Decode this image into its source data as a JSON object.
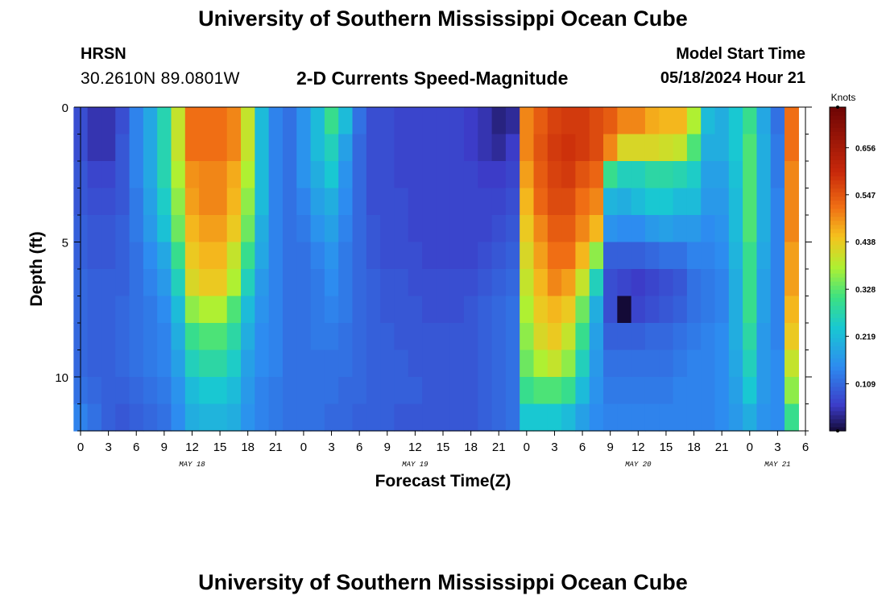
{
  "header": {
    "title": "University of Southern Mississippi Ocean Cube",
    "station": "HRSN",
    "coords": "30.2610N  89.0801W",
    "subtitle": "2-D Currents Speed-Magnitude",
    "model_start_label": "Model Start Time",
    "model_start_value": "05/18/2024 Hour 21"
  },
  "footer": {
    "title": "University of Southern Mississippi Ocean Cube"
  },
  "chart_data": {
    "type": "heatmap",
    "xlabel": "Forecast Time(Z)",
    "ylabel": "Depth (ft)",
    "colorbar_label": "Knots",
    "x_hours": [
      0,
      3,
      6,
      9,
      12,
      15,
      18,
      21,
      24,
      27,
      30,
      33,
      36,
      39,
      42,
      45,
      48,
      51,
      54,
      57,
      60,
      63,
      66,
      69,
      72,
      75,
      78
    ],
    "x_tick_labels": [
      "0",
      "3",
      "6",
      "9",
      "12",
      "15",
      "18",
      "21",
      "0",
      "3",
      "6",
      "9",
      "12",
      "15",
      "18",
      "21",
      "0",
      "3",
      "6",
      "9",
      "12",
      "15",
      "18",
      "21",
      "0",
      "3",
      "6"
    ],
    "date_labels": [
      {
        "label": "MAY 18",
        "hour": 12
      },
      {
        "label": "MAY 19",
        "hour": 36
      },
      {
        "label": "MAY 20",
        "hour": 60
      },
      {
        "label": "MAY 21",
        "hour": 75
      }
    ],
    "xlim": [
      0,
      78
    ],
    "ylim": [
      0,
      12
    ],
    "y_ticks": [
      0,
      5,
      10
    ],
    "y_tick_labels": [
      "0",
      "5",
      "10"
    ],
    "depths_ft": [
      0.5,
      1.5,
      2.5,
      3.5,
      4.5,
      5.5,
      6.5,
      7.5,
      8.5,
      9.5,
      10.5,
      11.5
    ],
    "times_h": [
      0,
      1.5,
      3,
      4.5,
      6,
      7.5,
      9,
      10.5,
      12,
      13.5,
      15,
      16.5,
      18,
      19.5,
      21,
      22.5,
      24,
      25.5,
      27,
      28.5,
      30,
      31.5,
      33,
      34.5,
      36,
      37.5,
      39,
      40.5,
      42,
      43.5,
      45,
      46.5,
      48,
      49.5,
      51,
      52.5,
      54,
      55.5,
      57,
      58.5,
      60,
      61.5,
      63,
      64.5,
      66,
      67.5,
      69,
      70.5,
      72,
      73.5,
      75,
      76.5
    ],
    "colorbar_ticks": [
      0.109,
      0.219,
      0.328,
      0.438,
      0.547,
      0.656
    ],
    "colorbar_range": [
      0.0,
      0.75
    ],
    "values": [
      [
        0.08,
        0.05,
        0.05,
        0.08,
        0.14,
        0.19,
        0.27,
        0.4,
        0.52,
        0.52,
        0.52,
        0.5,
        0.4,
        0.22,
        0.14,
        0.12,
        0.16,
        0.22,
        0.3,
        0.22,
        0.12,
        0.08,
        0.08,
        0.07,
        0.07,
        0.07,
        0.07,
        0.07,
        0.06,
        0.05,
        0.03,
        0.04,
        0.5,
        0.54,
        0.57,
        0.58,
        0.58,
        0.56,
        0.54,
        0.5,
        0.5,
        0.47,
        0.46,
        0.46,
        0.38,
        0.22,
        0.2,
        0.24,
        0.3,
        0.19,
        0.12,
        0.52
      ],
      [
        0.08,
        0.05,
        0.05,
        0.09,
        0.14,
        0.19,
        0.27,
        0.4,
        0.52,
        0.52,
        0.52,
        0.5,
        0.4,
        0.22,
        0.14,
        0.12,
        0.16,
        0.22,
        0.26,
        0.18,
        0.11,
        0.08,
        0.08,
        0.07,
        0.07,
        0.07,
        0.07,
        0.07,
        0.06,
        0.05,
        0.04,
        0.06,
        0.5,
        0.55,
        0.58,
        0.59,
        0.58,
        0.56,
        0.5,
        0.42,
        0.42,
        0.42,
        0.41,
        0.4,
        0.32,
        0.2,
        0.2,
        0.24,
        0.32,
        0.2,
        0.13,
        0.52
      ],
      [
        0.09,
        0.07,
        0.07,
        0.09,
        0.14,
        0.19,
        0.27,
        0.38,
        0.49,
        0.5,
        0.5,
        0.47,
        0.38,
        0.22,
        0.14,
        0.12,
        0.16,
        0.2,
        0.24,
        0.16,
        0.11,
        0.08,
        0.08,
        0.07,
        0.07,
        0.07,
        0.07,
        0.07,
        0.07,
        0.06,
        0.06,
        0.07,
        0.48,
        0.54,
        0.57,
        0.58,
        0.55,
        0.53,
        0.3,
        0.26,
        0.26,
        0.28,
        0.28,
        0.27,
        0.25,
        0.18,
        0.18,
        0.23,
        0.32,
        0.2,
        0.13,
        0.5
      ],
      [
        0.09,
        0.08,
        0.08,
        0.09,
        0.13,
        0.18,
        0.25,
        0.36,
        0.48,
        0.5,
        0.5,
        0.46,
        0.36,
        0.22,
        0.14,
        0.12,
        0.14,
        0.18,
        0.2,
        0.15,
        0.11,
        0.08,
        0.08,
        0.08,
        0.07,
        0.07,
        0.07,
        0.07,
        0.07,
        0.07,
        0.07,
        0.08,
        0.46,
        0.53,
        0.56,
        0.56,
        0.52,
        0.5,
        0.21,
        0.2,
        0.22,
        0.24,
        0.24,
        0.22,
        0.22,
        0.17,
        0.17,
        0.22,
        0.32,
        0.2,
        0.14,
        0.5
      ],
      [
        0.1,
        0.09,
        0.09,
        0.1,
        0.13,
        0.17,
        0.23,
        0.34,
        0.46,
        0.48,
        0.48,
        0.44,
        0.34,
        0.2,
        0.14,
        0.12,
        0.13,
        0.16,
        0.18,
        0.14,
        0.11,
        0.09,
        0.08,
        0.08,
        0.07,
        0.07,
        0.07,
        0.07,
        0.07,
        0.07,
        0.08,
        0.09,
        0.44,
        0.5,
        0.54,
        0.54,
        0.5,
        0.46,
        0.16,
        0.15,
        0.15,
        0.17,
        0.18,
        0.17,
        0.17,
        0.15,
        0.16,
        0.22,
        0.32,
        0.2,
        0.14,
        0.5
      ],
      [
        0.1,
        0.09,
        0.09,
        0.1,
        0.12,
        0.15,
        0.19,
        0.3,
        0.44,
        0.46,
        0.46,
        0.4,
        0.3,
        0.19,
        0.14,
        0.12,
        0.12,
        0.14,
        0.16,
        0.13,
        0.11,
        0.09,
        0.08,
        0.08,
        0.08,
        0.07,
        0.07,
        0.07,
        0.07,
        0.08,
        0.09,
        0.1,
        0.42,
        0.48,
        0.52,
        0.52,
        0.46,
        0.36,
        0.1,
        0.1,
        0.1,
        0.11,
        0.12,
        0.12,
        0.14,
        0.14,
        0.15,
        0.21,
        0.3,
        0.19,
        0.14,
        0.48
      ],
      [
        0.11,
        0.1,
        0.1,
        0.1,
        0.12,
        0.14,
        0.17,
        0.26,
        0.42,
        0.44,
        0.44,
        0.38,
        0.26,
        0.17,
        0.14,
        0.12,
        0.12,
        0.13,
        0.15,
        0.13,
        0.11,
        0.1,
        0.09,
        0.09,
        0.08,
        0.08,
        0.08,
        0.08,
        0.08,
        0.09,
        0.1,
        0.11,
        0.4,
        0.46,
        0.5,
        0.48,
        0.4,
        0.26,
        0.08,
        0.07,
        0.06,
        0.07,
        0.08,
        0.09,
        0.12,
        0.13,
        0.14,
        0.2,
        0.3,
        0.18,
        0.14,
        0.48
      ],
      [
        0.11,
        0.1,
        0.1,
        0.11,
        0.12,
        0.13,
        0.15,
        0.22,
        0.36,
        0.38,
        0.38,
        0.32,
        0.22,
        0.16,
        0.14,
        0.12,
        0.12,
        0.13,
        0.14,
        0.13,
        0.11,
        0.1,
        0.09,
        0.09,
        0.09,
        0.08,
        0.08,
        0.08,
        0.09,
        0.1,
        0.11,
        0.12,
        0.38,
        0.44,
        0.46,
        0.44,
        0.34,
        0.2,
        0.08,
        0.0,
        0.07,
        0.08,
        0.09,
        0.1,
        0.12,
        0.13,
        0.14,
        0.2,
        0.3,
        0.18,
        0.14,
        0.46
      ],
      [
        0.11,
        0.1,
        0.1,
        0.11,
        0.12,
        0.13,
        0.14,
        0.2,
        0.3,
        0.32,
        0.32,
        0.28,
        0.2,
        0.15,
        0.14,
        0.12,
        0.12,
        0.13,
        0.13,
        0.12,
        0.11,
        0.1,
        0.1,
        0.09,
        0.09,
        0.09,
        0.09,
        0.09,
        0.09,
        0.1,
        0.11,
        0.12,
        0.36,
        0.42,
        0.44,
        0.4,
        0.3,
        0.18,
        0.1,
        0.1,
        0.1,
        0.11,
        0.11,
        0.12,
        0.13,
        0.14,
        0.15,
        0.2,
        0.28,
        0.17,
        0.14,
        0.44
      ],
      [
        0.11,
        0.1,
        0.1,
        0.11,
        0.12,
        0.13,
        0.14,
        0.18,
        0.26,
        0.28,
        0.28,
        0.25,
        0.18,
        0.15,
        0.14,
        0.12,
        0.12,
        0.12,
        0.12,
        0.12,
        0.11,
        0.1,
        0.1,
        0.1,
        0.09,
        0.09,
        0.09,
        0.09,
        0.09,
        0.1,
        0.11,
        0.12,
        0.34,
        0.38,
        0.4,
        0.36,
        0.26,
        0.17,
        0.12,
        0.12,
        0.12,
        0.12,
        0.12,
        0.13,
        0.14,
        0.14,
        0.15,
        0.19,
        0.26,
        0.17,
        0.15,
        0.4
      ],
      [
        0.12,
        0.11,
        0.1,
        0.1,
        0.11,
        0.12,
        0.13,
        0.16,
        0.22,
        0.24,
        0.24,
        0.22,
        0.17,
        0.14,
        0.13,
        0.12,
        0.12,
        0.12,
        0.12,
        0.11,
        0.11,
        0.1,
        0.1,
        0.1,
        0.1,
        0.09,
        0.09,
        0.09,
        0.09,
        0.1,
        0.11,
        0.12,
        0.3,
        0.32,
        0.32,
        0.3,
        0.22,
        0.16,
        0.13,
        0.13,
        0.13,
        0.13,
        0.13,
        0.14,
        0.14,
        0.14,
        0.15,
        0.18,
        0.24,
        0.17,
        0.15,
        0.36
      ],
      [
        0.14,
        0.12,
        0.1,
        0.09,
        0.1,
        0.11,
        0.12,
        0.15,
        0.2,
        0.21,
        0.21,
        0.2,
        0.16,
        0.14,
        0.13,
        0.12,
        0.12,
        0.12,
        0.11,
        0.11,
        0.1,
        0.1,
        0.1,
        0.09,
        0.09,
        0.09,
        0.09,
        0.09,
        0.09,
        0.1,
        0.11,
        0.12,
        0.24,
        0.24,
        0.24,
        0.22,
        0.18,
        0.15,
        0.14,
        0.14,
        0.14,
        0.14,
        0.14,
        0.14,
        0.14,
        0.14,
        0.15,
        0.17,
        0.2,
        0.16,
        0.15,
        0.3
      ]
    ]
  }
}
